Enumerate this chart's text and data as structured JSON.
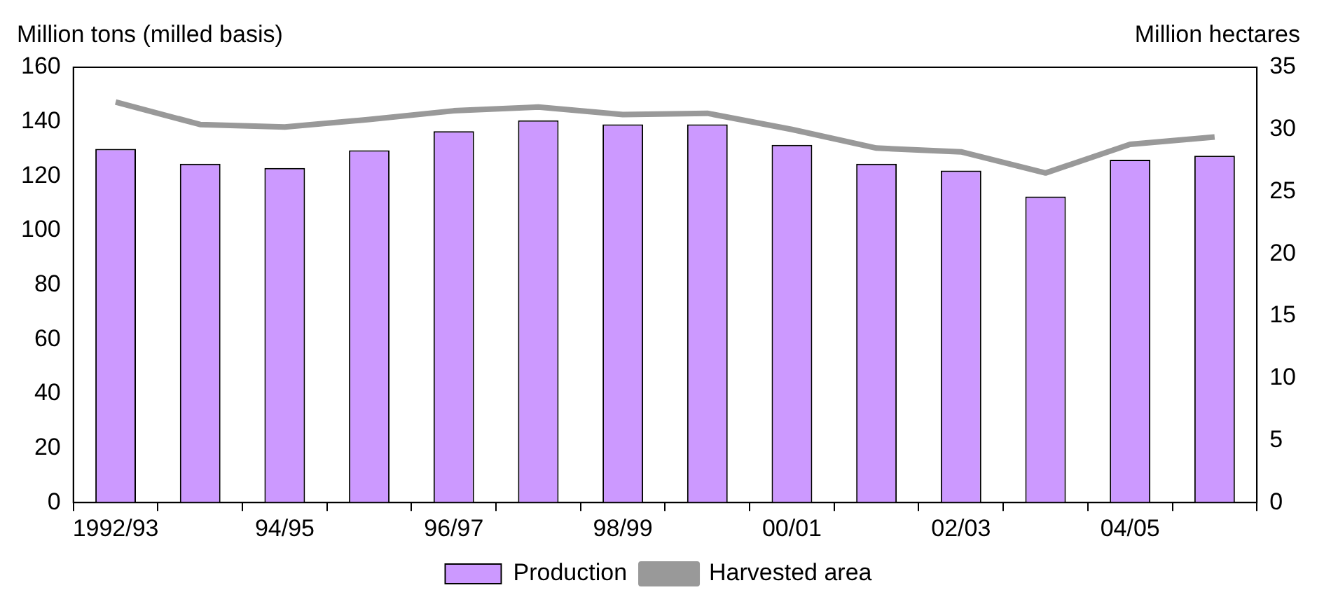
{
  "chart_data": {
    "type": "bar",
    "ylabel": "Million tons (milled basis)",
    "y2label": "Million hectares",
    "categories": [
      "1992/93",
      null,
      "94/95",
      null,
      "96/97",
      null,
      "98/99",
      null,
      "00/01",
      null,
      "02/03",
      null,
      "04/05",
      null
    ],
    "series": [
      {
        "name": "Production",
        "color": "#cc99ff",
        "values": [
          130,
          124.5,
          123,
          129.5,
          136.5,
          140.5,
          139,
          139,
          131.5,
          124.5,
          122,
          112.5,
          126,
          127.5
        ]
      },
      {
        "name": "Harvested area",
        "type": "line",
        "axis": "y2",
        "color": "#999999",
        "values": [
          32.2,
          30.4,
          30.2,
          30.8,
          31.5,
          31.8,
          31.2,
          31.3,
          30.0,
          28.5,
          28.2,
          26.5,
          28.8,
          29.4
        ]
      }
    ],
    "ylim": [
      0,
      160
    ],
    "yticks": [
      0,
      20,
      40,
      60,
      80,
      100,
      120,
      140,
      160
    ],
    "y2lim": [
      0,
      35
    ],
    "y2ticks": [
      0,
      5,
      10,
      15,
      20,
      25,
      30,
      35
    ],
    "grid": false,
    "legend": "bottom",
    "marker": "none"
  }
}
